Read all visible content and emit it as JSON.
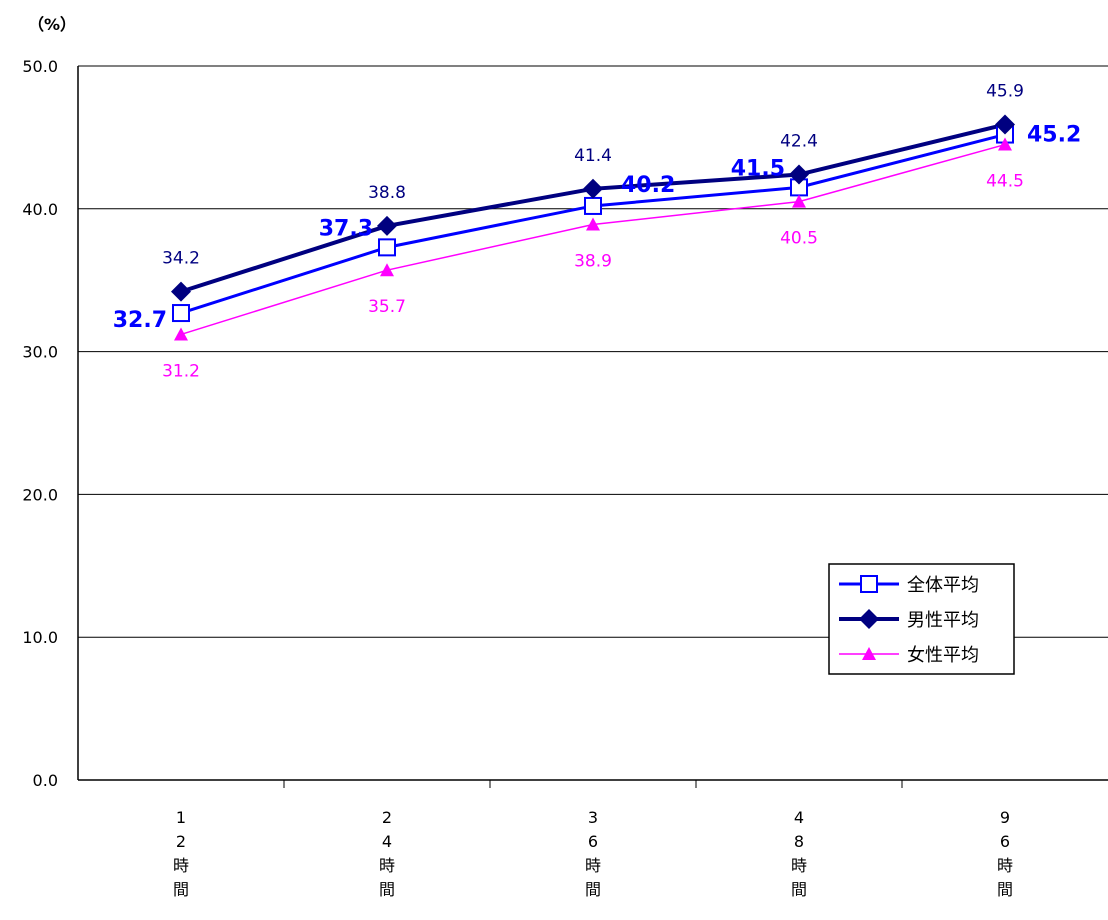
{
  "chart_data": {
    "type": "line",
    "unit_label": "（%）",
    "ylim": [
      0,
      50
    ],
    "yticks": [
      "0.0",
      "10.0",
      "20.0",
      "30.0",
      "40.0",
      "50.0"
    ],
    "categories": [
      [
        "1",
        "2",
        "時",
        "間"
      ],
      [
        "2",
        "4",
        "時",
        "間"
      ],
      [
        "3",
        "6",
        "時",
        "間"
      ],
      [
        "4",
        "8",
        "時",
        "間"
      ],
      [
        "9",
        "6",
        "時",
        "間"
      ]
    ],
    "grid": "horizontal",
    "legend_position": "bottom-right",
    "series": [
      {
        "name": "全体平均",
        "values": [
          32.7,
          37.3,
          40.2,
          41.5,
          45.2
        ],
        "labels": [
          "32.7",
          "37.3",
          "40.2",
          "41.5",
          "45.2"
        ],
        "color": "#0000ff",
        "marker": "square-open",
        "label_style": "bold-left"
      },
      {
        "name": "男性平均",
        "values": [
          34.2,
          38.8,
          41.4,
          42.4,
          45.9
        ],
        "labels": [
          "34.2",
          "38.8",
          "41.4",
          "42.4",
          "45.9"
        ],
        "color": "#000080",
        "marker": "diamond",
        "label_style": "above"
      },
      {
        "name": "女性平均",
        "values": [
          31.2,
          35.7,
          38.9,
          40.5,
          44.5
        ],
        "labels": [
          "31.2",
          "35.7",
          "38.9",
          "40.5",
          "44.5"
        ],
        "color": "#ff00ff",
        "marker": "triangle",
        "label_style": "below"
      }
    ]
  }
}
